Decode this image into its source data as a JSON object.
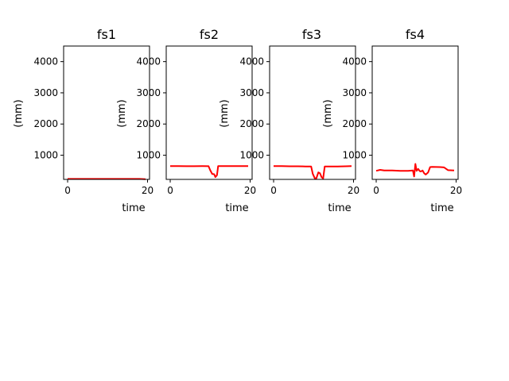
{
  "chart_data": [
    {
      "type": "line",
      "title": "fs1",
      "xlabel": "time",
      "ylabel": "(mm)",
      "xlim": [
        -1,
        20.5
      ],
      "ylim": [
        225,
        4500
      ],
      "xticks": [
        0,
        20
      ],
      "yticks": [
        1000,
        2000,
        3000,
        4000
      ],
      "grid": false,
      "series": [
        {
          "color": "#ff0000",
          "x": [
            0,
            2,
            4,
            6,
            8,
            10,
            12,
            14,
            16,
            18,
            19.5
          ],
          "y": [
            240,
            240,
            240,
            240,
            240,
            240,
            240,
            240,
            240,
            240,
            232
          ]
        }
      ]
    },
    {
      "type": "line",
      "title": "fs2",
      "xlabel": "time",
      "ylabel": "(mm)",
      "xlim": [
        -1,
        20.5
      ],
      "ylim": [
        225,
        4500
      ],
      "xticks": [
        0,
        20
      ],
      "yticks": [
        1000,
        2000,
        3000,
        4000
      ],
      "grid": false,
      "series": [
        {
          "color": "#ff0000",
          "x": [
            0,
            2,
            4,
            6,
            8,
            9.6,
            10,
            10.5,
            11,
            11.3,
            11.7,
            12,
            12.3,
            14,
            16,
            18,
            19.5
          ],
          "y": [
            650,
            650,
            648,
            648,
            650,
            648,
            520,
            400,
            390,
            300,
            360,
            650,
            650,
            650,
            650,
            652,
            650
          ]
        }
      ]
    },
    {
      "type": "line",
      "title": "fs3",
      "xlabel": "time",
      "ylabel": "(mm)",
      "xlim": [
        -1,
        20.5
      ],
      "ylim": [
        225,
        4500
      ],
      "xticks": [
        0,
        20
      ],
      "yticks": [
        1000,
        2000,
        3000,
        4000
      ],
      "grid": false,
      "series": [
        {
          "color": "#ff0000",
          "x": [
            0,
            2,
            4,
            6,
            8,
            9.4,
            9.8,
            10.3,
            10.7,
            11.2,
            11.6,
            12,
            12.4,
            12.8,
            14,
            16,
            18,
            19.5
          ],
          "y": [
            650,
            650,
            645,
            645,
            640,
            640,
            400,
            260,
            260,
            450,
            420,
            300,
            255,
            640,
            640,
            640,
            645,
            650
          ]
        }
      ]
    },
    {
      "type": "line",
      "title": "fs4",
      "xlabel": "time",
      "ylabel": "(mm)",
      "xlim": [
        -1,
        20.5
      ],
      "ylim": [
        225,
        4500
      ],
      "xticks": [
        0,
        20
      ],
      "yticks": [
        1000,
        2000,
        3000,
        4000
      ],
      "grid": false,
      "series": [
        {
          "color": "#ff0000",
          "x": [
            0,
            1,
            2,
            4,
            6,
            8,
            9.2,
            9.5,
            9.8,
            10.1,
            10.5,
            10.9,
            11.2,
            11.6,
            12,
            12.4,
            13,
            13.5,
            14,
            16,
            17,
            18,
            19.5
          ],
          "y": [
            500,
            530,
            510,
            510,
            500,
            500,
            510,
            320,
            720,
            500,
            560,
            490,
            480,
            510,
            420,
            380,
            450,
            620,
            625,
            620,
            610,
            520,
            510
          ]
        }
      ]
    }
  ]
}
